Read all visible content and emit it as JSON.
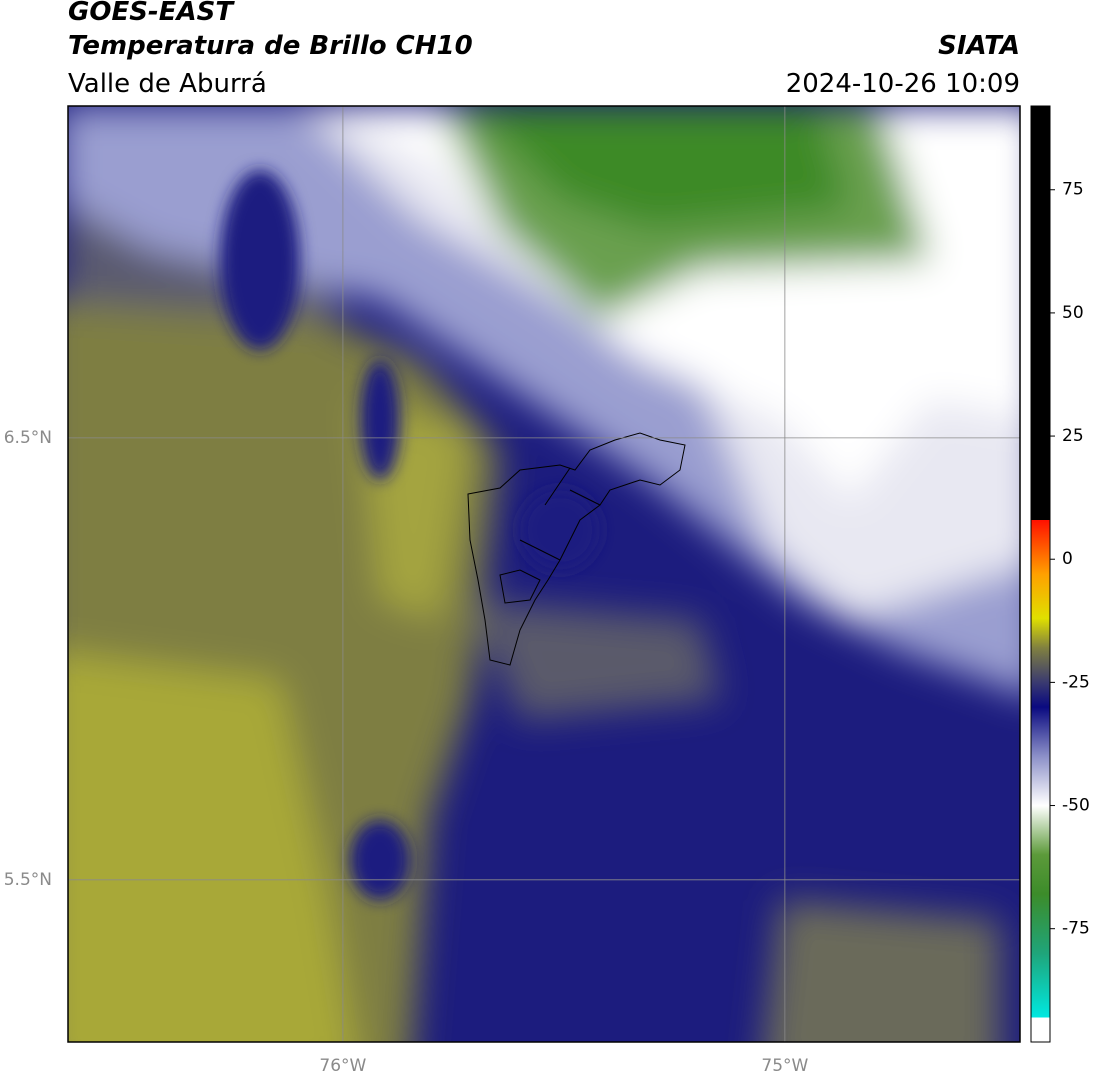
{
  "header": {
    "title": "GOES-EAST",
    "subtitle": "Temperatura de Brillo CH10",
    "region": "Valle de Aburrá",
    "source": "SIATA",
    "datetime": "2024-10-26 10:09"
  },
  "map": {
    "xlim": [
      -76.622,
      -74.468
    ],
    "ylim": [
      5.133,
      7.251
    ],
    "xticks": [
      {
        "value": -76,
        "label": "76°W"
      },
      {
        "value": -75,
        "label": "75°W"
      }
    ],
    "yticks": [
      {
        "value": 6.5,
        "label": "6.5°N"
      },
      {
        "value": 5.5,
        "label": "5.5°N"
      }
    ],
    "grid": true,
    "grid_color": "#8a8a8a"
  },
  "colorbar": {
    "lim": [
      -98,
      92
    ],
    "ticks": [
      75,
      50,
      25,
      0,
      -25,
      -50,
      -75
    ],
    "stops": [
      {
        "value": -98,
        "color": "#ffffff"
      },
      {
        "value": -93,
        "color": "#ffffff"
      },
      {
        "value": -93,
        "color": "#00e8e0"
      },
      {
        "value": -80,
        "color": "#1fa57a"
      },
      {
        "value": -68,
        "color": "#3c8c2a"
      },
      {
        "value": -60,
        "color": "#5c9a3a"
      },
      {
        "value": -50,
        "color": "#ffffff"
      },
      {
        "value": -40,
        "color": "#8c90c8"
      },
      {
        "value": -30,
        "color": "#0a0a80"
      },
      {
        "value": -25,
        "color": "#3a3a70"
      },
      {
        "value": -18,
        "color": "#808040"
      },
      {
        "value": -12,
        "color": "#e0e000"
      },
      {
        "value": -3,
        "color": "#ffa000"
      },
      {
        "value": 8,
        "color": "#ff1000"
      },
      {
        "value": 8,
        "color": "#000000"
      },
      {
        "value": 92,
        "color": "#000000"
      }
    ]
  }
}
